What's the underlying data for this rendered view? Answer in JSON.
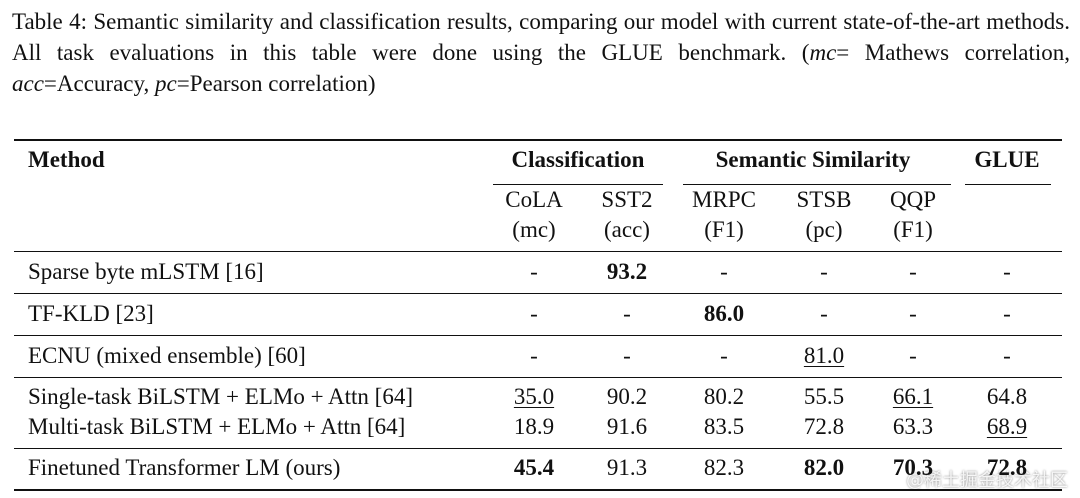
{
  "caption": {
    "segments": [
      "Table 4: Semantic similarity and classification results, comparing our model with current state-of-the-art methods. All task evaluations in this table were done using the GLUE benchmark. (",
      "mc",
      "= Mathews correlation, ",
      "acc",
      "=Accuracy, ",
      "pc",
      "=Pearson correlation)"
    ]
  },
  "table": {
    "header": {
      "method": "Method",
      "groups": [
        "Classification",
        "Semantic Similarity",
        "GLUE"
      ],
      "subheaders": [
        [
          "CoLA",
          "(mc)"
        ],
        [
          "SST2",
          "(acc)"
        ],
        [
          "MRPC",
          "(F1)"
        ],
        [
          "STSB",
          "(pc)"
        ],
        [
          "QQP",
          "(F1)"
        ]
      ]
    },
    "rows": [
      [
        "Sparse byte mLSTM [16]",
        "-",
        "93.2",
        "-",
        "-",
        "-",
        "-"
      ],
      [
        "TF-KLD [23]",
        "-",
        "-",
        "86.0",
        "-",
        "-",
        "-"
      ],
      [
        "ECNU (mixed ensemble) [60]",
        "-",
        "-",
        "-",
        "81.0",
        "-",
        "-"
      ],
      [
        "Single-task BiLSTM + ELMo + Attn [64]",
        "35.0",
        "90.2",
        "80.2",
        "55.5",
        "66.1",
        "64.8"
      ],
      [
        "Multi-task BiLSTM + ELMo + Attn [64]",
        "18.9",
        "91.6",
        "83.5",
        "72.8",
        "63.3",
        "68.9"
      ],
      [
        "Finetuned Transformer LM (ours)",
        "45.4",
        "91.3",
        "82.3",
        "82.0",
        "70.3",
        "72.8"
      ]
    ]
  },
  "watermark": "@稀土掘金技术社区"
}
